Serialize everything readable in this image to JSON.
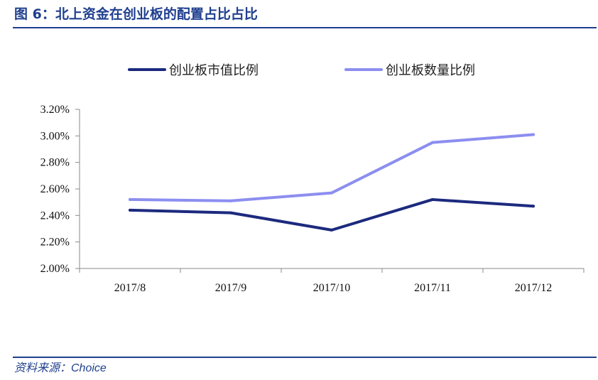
{
  "figure": {
    "title": "图 6：北上资金在创业板的配置占比占比",
    "source": "资料来源：Choice"
  },
  "colors": {
    "accent": "#1f3f8e",
    "series_dark": "#1c2a7e",
    "series_light": "#8c8ef0"
  },
  "chart_data": {
    "type": "line",
    "categories": [
      "2017/8",
      "2017/9",
      "2017/10",
      "2017/11",
      "2017/12"
    ],
    "series": [
      {
        "name": "创业板市值比例",
        "values": [
          2.44,
          2.42,
          2.29,
          2.52,
          2.47
        ]
      },
      {
        "name": "创业板数量比例",
        "values": [
          2.52,
          2.51,
          2.57,
          2.95,
          3.01
        ]
      }
    ],
    "yticks": [
      "3.20%",
      "3.00%",
      "2.80%",
      "2.60%",
      "2.40%",
      "2.20%",
      "2.00%"
    ],
    "ylim": [
      2.0,
      3.2
    ],
    "unit": "%",
    "xlabel": "",
    "ylabel": "",
    "legend_position": "top",
    "grid": false
  }
}
